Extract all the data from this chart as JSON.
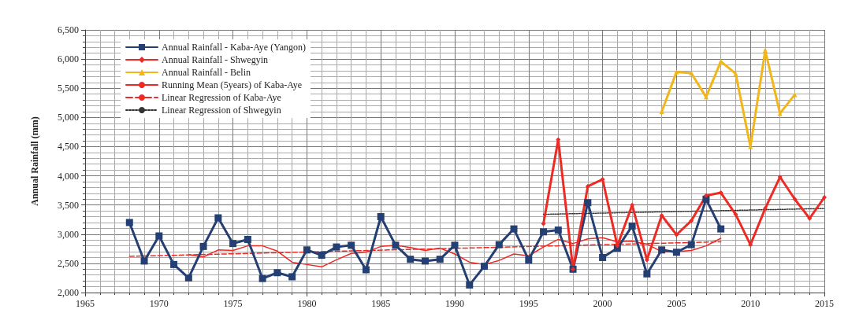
{
  "chart_data": {
    "type": "line",
    "ylabel": "Annual Rainfall (mm)",
    "xlim": [
      1965,
      2015
    ],
    "xticks": [
      1965,
      1970,
      1975,
      1980,
      1985,
      1990,
      1995,
      2000,
      2005,
      2010,
      2015
    ],
    "ylim": [
      2000,
      6500
    ],
    "yticks": [
      {
        "value": 2000,
        "label": "2,000"
      },
      {
        "value": 2500,
        "label": "2,500"
      },
      {
        "value": 3000,
        "label": "3,000"
      },
      {
        "value": 3500,
        "label": "3,500"
      },
      {
        "value": 4000,
        "label": "4,000"
      },
      {
        "value": 4500,
        "label": "4,500"
      },
      {
        "value": 5000,
        "label": "5,000"
      },
      {
        "value": 5500,
        "label": "5,500"
      },
      {
        "value": 6000,
        "label": "6,000"
      },
      {
        "value": 6500,
        "label": "6,500"
      }
    ],
    "grid": true,
    "legend": "top left",
    "series": [
      {
        "name": "Annual Rainfall - Kaba-Aye (Yangon)",
        "color": "#243f73",
        "marker": "square",
        "x": [
          1968,
          1969,
          1970,
          1971,
          1972,
          1973,
          1974,
          1975,
          1976,
          1977,
          1978,
          1979,
          1980,
          1981,
          1982,
          1983,
          1984,
          1985,
          1986,
          1987,
          1988,
          1989,
          1990,
          1991,
          1992,
          1993,
          1994,
          1995,
          1996,
          1997,
          1998,
          1999,
          2000,
          2001,
          2002,
          2003,
          2004,
          2005,
          2006,
          2007,
          2008
        ],
        "values": [
          3200,
          2540,
          2970,
          2480,
          2250,
          2790,
          3280,
          2840,
          2910,
          2240,
          2340,
          2270,
          2730,
          2640,
          2780,
          2810,
          2390,
          3300,
          2810,
          2570,
          2540,
          2570,
          2810,
          2130,
          2450,
          2820,
          3090,
          2560,
          3040,
          3070,
          2400,
          3540,
          2600,
          2760,
          3140,
          2320,
          2730,
          2690,
          2820,
          3600,
          3090
        ]
      },
      {
        "name": "Annual Rainfall - Shwegyin",
        "color": "#ee2a24",
        "marker": "diamond",
        "x": [
          1996,
          1997,
          1998,
          1999,
          2000,
          2001,
          2002,
          2003,
          2004,
          2005,
          2006,
          2007,
          2008,
          2009,
          2010,
          2011,
          2012,
          2013,
          2014,
          2015
        ],
        "values": [
          3180,
          4620,
          2400,
          3820,
          3940,
          2800,
          3500,
          2560,
          3320,
          2990,
          3230,
          3660,
          3710,
          3340,
          2820,
          3440,
          3980,
          3600,
          3270,
          3630
        ]
      },
      {
        "name": "Annual Rainfall - Belin",
        "color": "#f2b619",
        "marker": "triangle",
        "x": [
          2004,
          2005,
          2006,
          2007,
          2008,
          2009,
          2010,
          2011,
          2012,
          2013
        ],
        "values": [
          5100,
          5780,
          5760,
          5350,
          5960,
          5750,
          4500,
          6150,
          5070,
          5390
        ]
      },
      {
        "name": "Running Mean (5years) of Kaba-Aye",
        "color": "#ee2a24",
        "marker": "none",
        "line_style": "solid",
        "x": [
          1972,
          1973,
          1974,
          1975,
          1976,
          1977,
          1978,
          1979,
          1980,
          1981,
          1982,
          1983,
          1984,
          1985,
          1986,
          1987,
          1988,
          1989,
          1990,
          1991,
          1992,
          1993,
          1994,
          1995,
          1996,
          1997,
          1998,
          1999,
          2000,
          2001,
          2002,
          2003,
          2004,
          2005,
          2006,
          2007,
          2008
        ],
        "values": [
          2650,
          2610,
          2730,
          2720,
          2800,
          2800,
          2710,
          2520,
          2480,
          2440,
          2560,
          2670,
          2690,
          2790,
          2810,
          2770,
          2720,
          2760,
          2660,
          2520,
          2480,
          2550,
          2660,
          2630,
          2780,
          2910,
          2840,
          2920,
          2940,
          2870,
          2880,
          2830,
          2700,
          2700,
          2720,
          2800,
          2930
        ]
      },
      {
        "name": "Linear Regression of Kaba-Aye",
        "color": "#ee2a24",
        "marker": "none",
        "line_style": "dashed",
        "x": [
          1968,
          2008
        ],
        "values": [
          2620,
          2870
        ]
      },
      {
        "name": "Linear Regression of Shwegyin",
        "color": "#333333",
        "marker": "none",
        "line_style": "dotted",
        "x": [
          1996,
          2015
        ],
        "values": [
          3340,
          3440
        ]
      }
    ]
  }
}
